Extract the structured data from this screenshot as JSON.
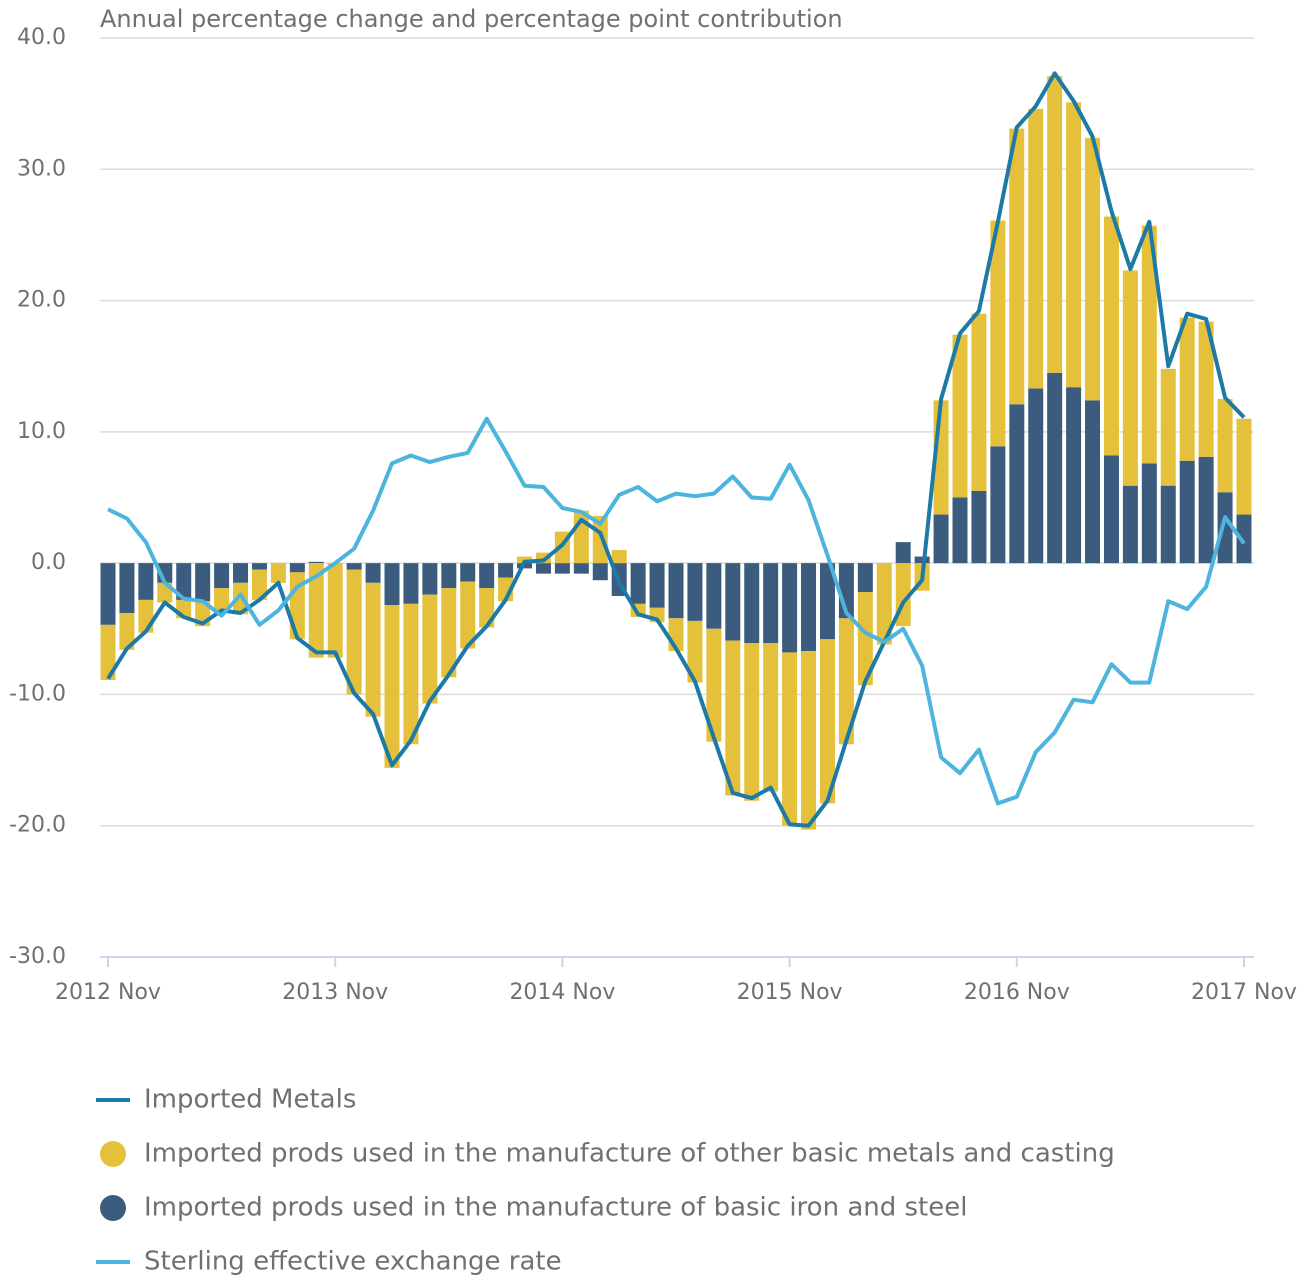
{
  "chart_data": {
    "type": "bar",
    "title": "Annual percentage change and percentage point contribution",
    "categories": [
      "2012 Nov",
      null,
      null,
      null,
      null,
      null,
      null,
      null,
      null,
      null,
      null,
      null,
      "2013 Nov",
      null,
      null,
      null,
      null,
      null,
      null,
      null,
      null,
      null,
      null,
      null,
      "2014 Nov",
      null,
      null,
      null,
      null,
      null,
      null,
      null,
      null,
      null,
      null,
      null,
      "2015 Nov",
      null,
      null,
      null,
      null,
      null,
      null,
      null,
      null,
      null,
      null,
      null,
      "2016 Nov",
      null,
      null,
      null,
      null,
      null,
      null,
      null,
      null,
      null,
      null,
      null,
      "2017 Nov"
    ],
    "series": [
      {
        "name": "Imported Metals",
        "type": "line",
        "color": "#1d7aa6",
        "values": [
          -8.8,
          -6.5,
          -5.2,
          -3.0,
          -4.1,
          -4.6,
          -3.6,
          -3.8,
          -2.8,
          -1.5,
          -5.7,
          -6.8,
          -6.8,
          -9.9,
          -11.5,
          -15.4,
          -13.5,
          -10.5,
          -8.5,
          -6.3,
          -4.8,
          -2.8,
          0.1,
          0.2,
          1.4,
          3.3,
          2.3,
          -1.5,
          -3.9,
          -4.3,
          -6.5,
          -9.0,
          -13.3,
          -17.5,
          -17.9,
          -17.1,
          -19.9,
          -20.0,
          -18.1,
          -13.5,
          -9.0,
          -6.0,
          -3.0,
          -1.3,
          12.5,
          17.5,
          19.2,
          26.0,
          33.2,
          34.8,
          37.3,
          35.2,
          32.5,
          26.8,
          22.4,
          26.0,
          15.0,
          19.0,
          18.6,
          12.6,
          11.1
        ]
      },
      {
        "name": "Imported prods used in the manufacture of other basic metals and casting",
        "type": "bar",
        "color": "#e5c03a",
        "values": [
          -4.2,
          -2.8,
          -2.5,
          -1.5,
          -1.4,
          -1.9,
          -1.9,
          -2.4,
          -2.3,
          -1.5,
          -5.1,
          -7.2,
          -7.2,
          -9.5,
          -10.2,
          -12.4,
          -10.7,
          -8.3,
          -6.8,
          -5.1,
          -3.0,
          -1.8,
          0.5,
          0.8,
          2.4,
          4.0,
          3.6,
          1.0,
          -1.0,
          -1.1,
          -2.5,
          -4.7,
          -8.6,
          -11.8,
          -12.0,
          -11.3,
          -13.2,
          -13.6,
          -12.5,
          -9.6,
          -7.1,
          -6.2,
          -4.8,
          -2.1,
          8.7,
          12.4,
          13.5,
          17.2,
          21.0,
          21.3,
          22.6,
          21.7,
          20.0,
          18.2,
          16.4,
          18.1,
          8.9,
          10.9,
          10.3,
          7.1,
          7.3
        ]
      },
      {
        "name": "Imported prods used in the manufacture of basic iron and steel",
        "type": "bar",
        "color": "#3b5c7f",
        "values": [
          -4.7,
          -3.8,
          -2.8,
          -1.5,
          -2.8,
          -2.9,
          -1.9,
          -1.5,
          -0.5,
          0,
          -0.7,
          0.1,
          0,
          -0.5,
          -1.5,
          -3.2,
          -3.1,
          -2.4,
          -1.9,
          -1.4,
          -1.9,
          -1.1,
          -0.4,
          -0.8,
          -0.8,
          -0.8,
          -1.3,
          -2.5,
          -3.1,
          -3.4,
          -4.2,
          -4.4,
          -5.0,
          -5.9,
          -6.1,
          -6.1,
          -6.8,
          -6.7,
          -5.8,
          -4.2,
          -2.2,
          0,
          1.6,
          0.5,
          3.7,
          5.0,
          5.5,
          8.9,
          12.1,
          13.3,
          14.5,
          13.4,
          12.4,
          8.2,
          5.9,
          7.6,
          5.9,
          7.8,
          8.1,
          5.4,
          3.7
        ]
      },
      {
        "name": "Sterling effective exchange rate",
        "type": "line",
        "color": "#4db4dd",
        "values": [
          4.1,
          3.4,
          1.6,
          -1.5,
          -2.7,
          -2.9,
          -4.0,
          -2.4,
          -4.7,
          -3.6,
          -1.8,
          -1.0,
          0,
          1.1,
          4.0,
          7.6,
          8.2,
          7.7,
          8.1,
          8.4,
          11.0,
          8.5,
          5.9,
          5.8,
          4.2,
          3.9,
          3.0,
          5.2,
          5.8,
          4.7,
          5.3,
          5.1,
          5.3,
          6.6,
          5.0,
          4.9,
          7.5,
          4.8,
          0.6,
          -3.8,
          -5.3,
          -6.0,
          -5.0,
          -7.8,
          -14.8,
          -16.0,
          -14.2,
          -18.3,
          -17.8,
          -14.4,
          -12.9,
          -10.4,
          -10.6,
          -7.7,
          -9.1,
          -9.1,
          -2.9,
          -3.5,
          -1.8,
          3.5,
          1.5
        ]
      }
    ],
    "ylim": [
      -30,
      40
    ],
    "yticks": [
      {
        "value": -30,
        "label": "-30.0"
      },
      {
        "value": -20,
        "label": "-20.0"
      },
      {
        "value": -10,
        "label": "-10.0"
      },
      {
        "value": 0,
        "label": "0.0"
      },
      {
        "value": 10,
        "label": "10.0"
      },
      {
        "value": 20,
        "label": "20.0"
      },
      {
        "value": 30,
        "label": "30.0"
      },
      {
        "value": 40,
        "label": "40.0"
      }
    ],
    "grid": true,
    "legend": "bottom"
  }
}
